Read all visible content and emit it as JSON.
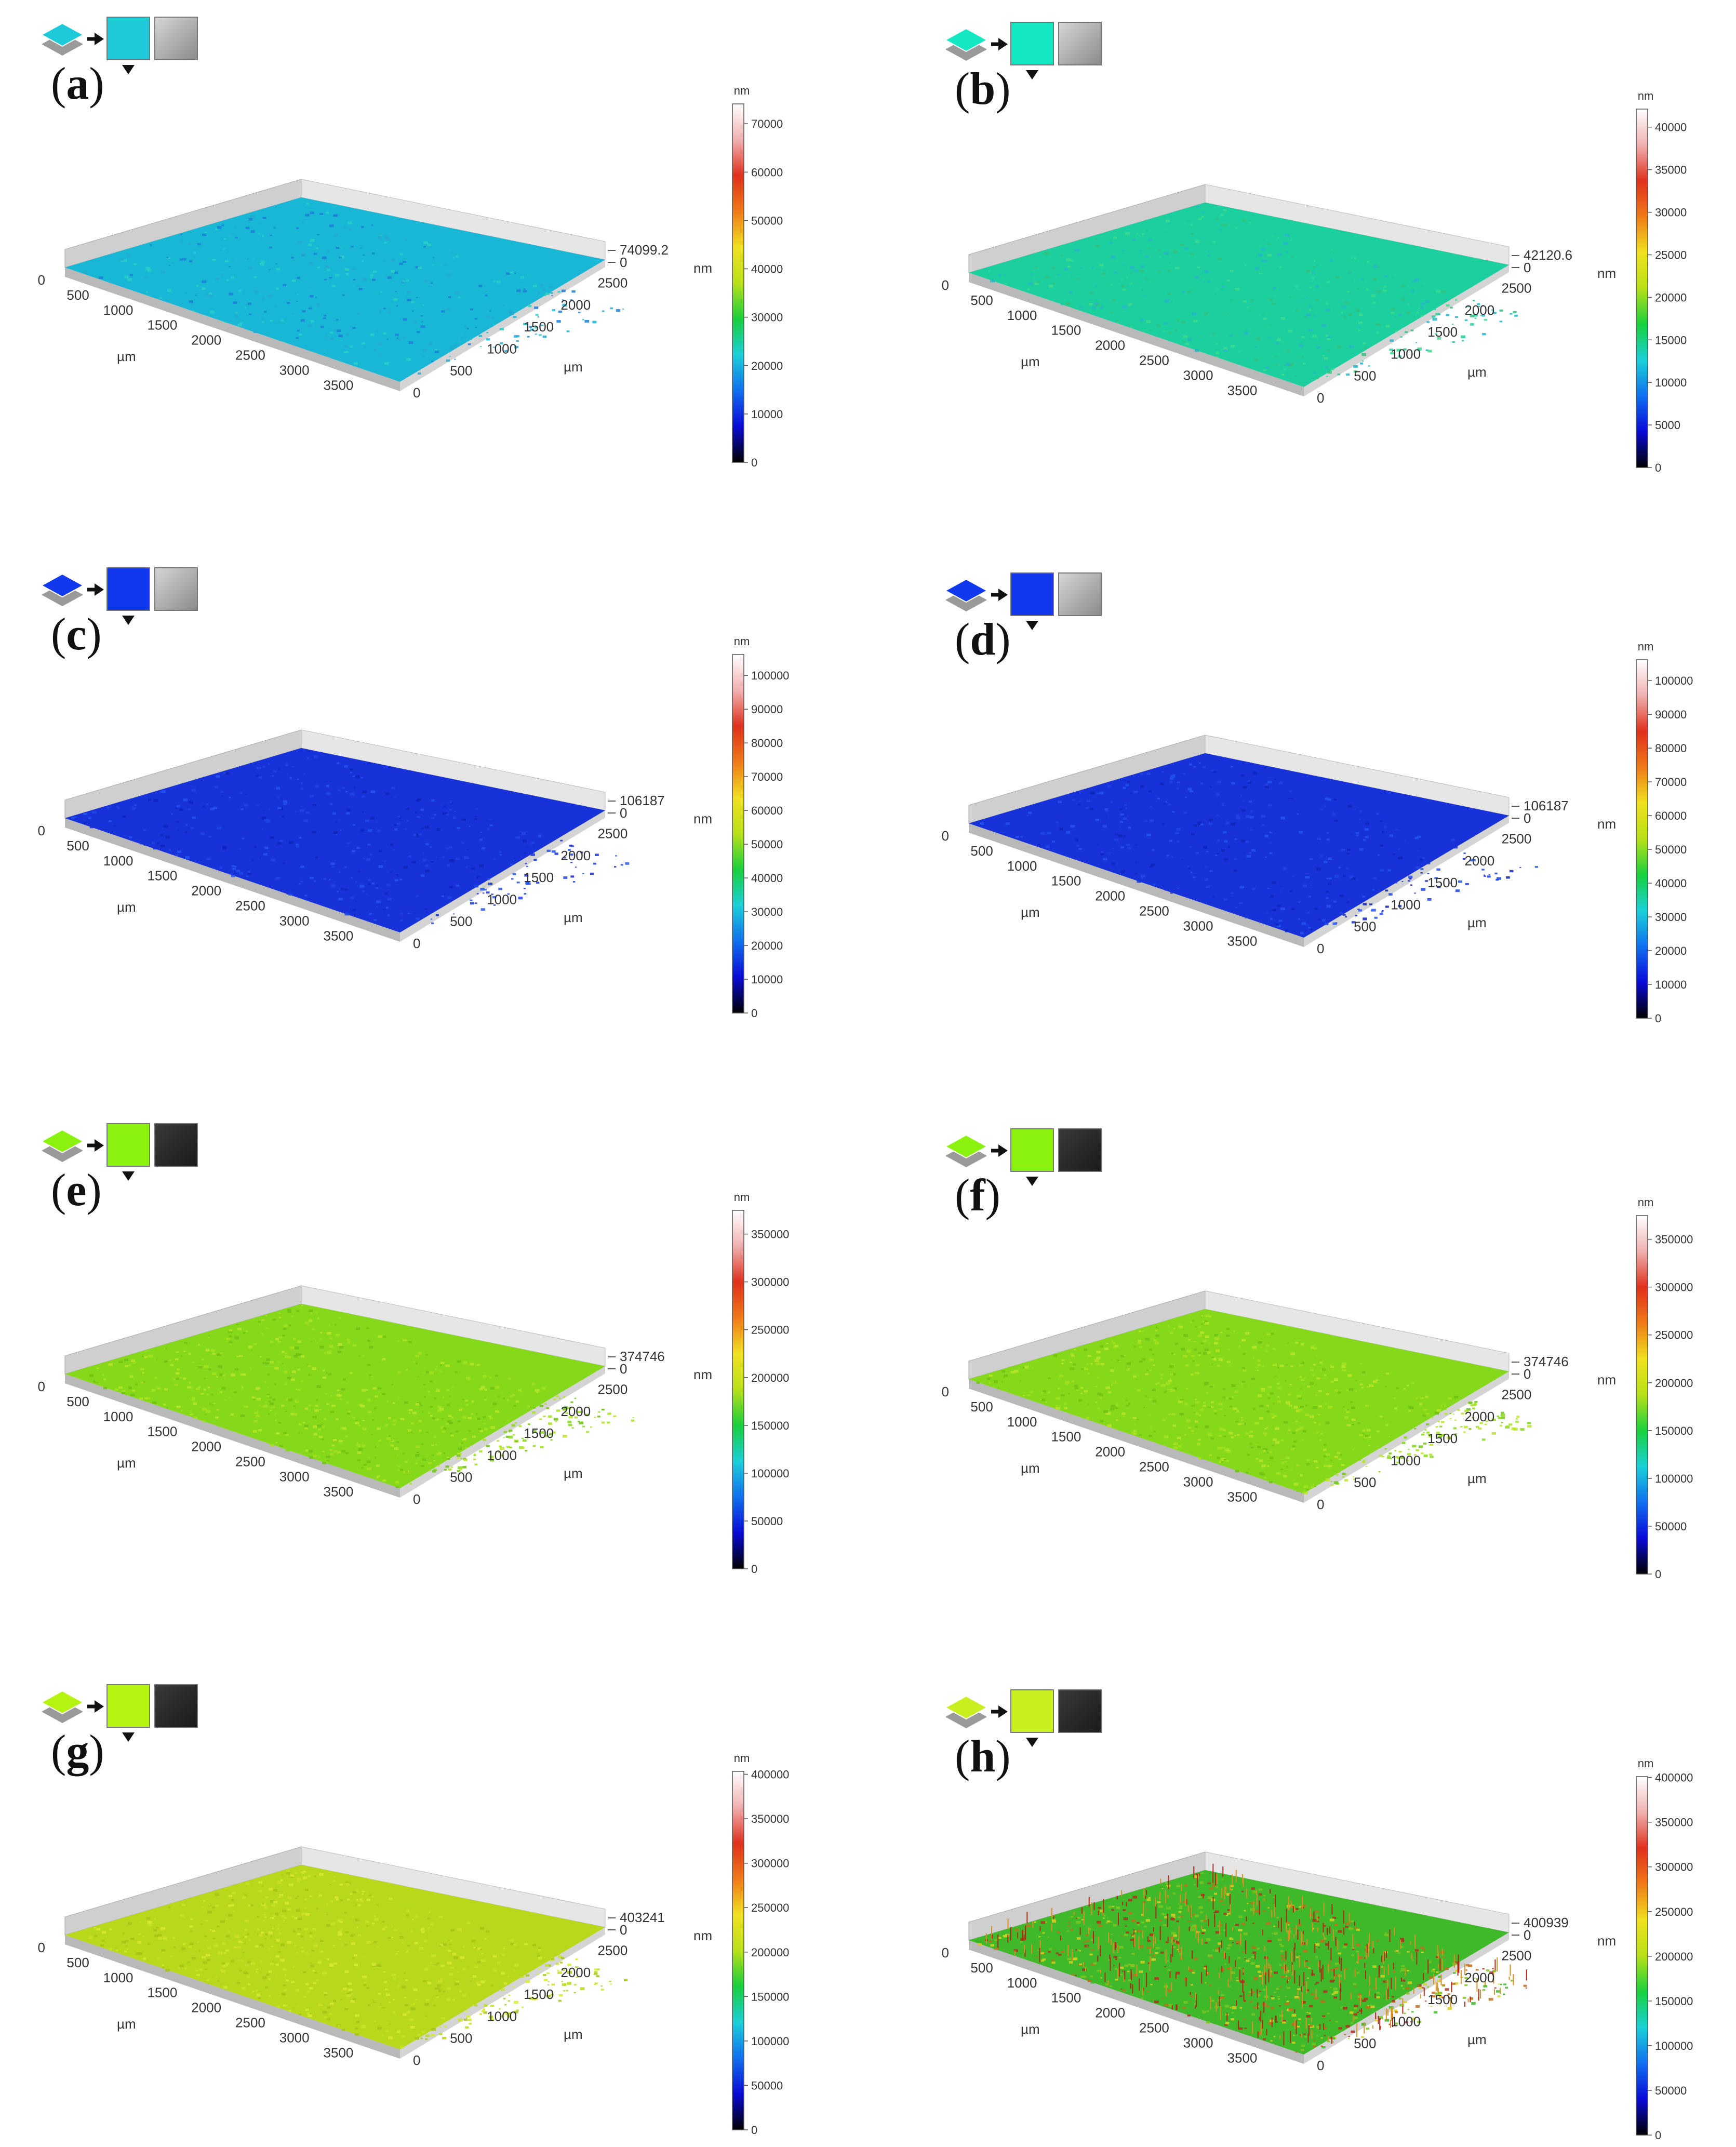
{
  "panels": [
    {
      "letter": "a",
      "swatch_color": "#1ec9d8",
      "sem_tone": "light",
      "surface_colors": [
        "#19b7d6",
        "#2ad0c6",
        "#1c7fd8",
        "#26a8cf"
      ],
      "surface_style": "flat",
      "colorbar_max_label": "74099.2",
      "unit": "nm",
      "colorbar_ticks": [
        "0",
        "10000",
        "20000",
        "30000",
        "40000",
        "50000",
        "60000",
        "70000"
      ],
      "x_ticks": [
        "0",
        "500",
        "1000",
        "1500",
        "2000",
        "2500",
        "3000",
        "3500"
      ],
      "y_ticks": [
        "0",
        "500",
        "1000",
        "1500",
        "2000",
        "2500"
      ],
      "axis_unit": "µm"
    },
    {
      "letter": "b",
      "swatch_color": "#14e8c2",
      "sem_tone": "light",
      "surface_colors": [
        "#1ccf9e",
        "#34c07a",
        "#27b5c9",
        "#3ddc8c"
      ],
      "surface_style": "flat",
      "colorbar_max_label": "42120.6",
      "unit": "nm",
      "colorbar_ticks": [
        "0",
        "5000",
        "10000",
        "15000",
        "20000",
        "25000",
        "30000",
        "35000",
        "40000"
      ],
      "x_ticks": [
        "0",
        "500",
        "1000",
        "1500",
        "2000",
        "2500",
        "3000",
        "3500"
      ],
      "y_ticks": [
        "0",
        "500",
        "1000",
        "1500",
        "2000",
        "2500"
      ],
      "axis_unit": "µm"
    },
    {
      "letter": "c",
      "swatch_color": "#1238ee",
      "sem_tone": "light",
      "surface_colors": [
        "#1632d8",
        "#1e45e8",
        "#0f24b8",
        "#2355f2"
      ],
      "surface_style": "flat",
      "colorbar_max_label": "106187",
      "unit": "nm",
      "colorbar_ticks": [
        "0",
        "10000",
        "20000",
        "30000",
        "40000",
        "50000",
        "60000",
        "70000",
        "80000",
        "90000",
        "100000"
      ],
      "x_ticks": [
        "0",
        "500",
        "1000",
        "1500",
        "2000",
        "2500",
        "3000",
        "3500"
      ],
      "y_ticks": [
        "0",
        "500",
        "1000",
        "1500",
        "2000",
        "2500"
      ],
      "axis_unit": "µm"
    },
    {
      "letter": "d",
      "swatch_color": "#1238ee",
      "sem_tone": "light",
      "surface_colors": [
        "#1632d8",
        "#1e45e8",
        "#0f24b8",
        "#2355f2"
      ],
      "surface_style": "flat",
      "colorbar_max_label": "106187",
      "unit": "nm",
      "colorbar_ticks": [
        "0",
        "10000",
        "20000",
        "30000",
        "40000",
        "50000",
        "60000",
        "70000",
        "80000",
        "90000",
        "100000"
      ],
      "x_ticks": [
        "0",
        "500",
        "1000",
        "1500",
        "2000",
        "2500",
        "3000",
        "3500"
      ],
      "y_ticks": [
        "0",
        "500",
        "1000",
        "1500",
        "2000",
        "2500"
      ],
      "axis_unit": "µm"
    },
    {
      "letter": "e",
      "swatch_color": "#8af20e",
      "sem_tone": "dark",
      "surface_colors": [
        "#86d81a",
        "#a4e21e",
        "#6fc214",
        "#b8e628"
      ],
      "surface_style": "rough",
      "colorbar_max_label": "374746",
      "unit": "nm",
      "colorbar_ticks": [
        "0",
        "50000",
        "100000",
        "150000",
        "200000",
        "250000",
        "300000",
        "350000"
      ],
      "x_ticks": [
        "0",
        "500",
        "1000",
        "1500",
        "2000",
        "2500",
        "3000",
        "3500"
      ],
      "y_ticks": [
        "0",
        "500",
        "1000",
        "1500",
        "2000",
        "2500"
      ],
      "axis_unit": "µm"
    },
    {
      "letter": "f",
      "swatch_color": "#8af20e",
      "sem_tone": "dark",
      "surface_colors": [
        "#86d81a",
        "#a4e21e",
        "#6fc214",
        "#b8e628"
      ],
      "surface_style": "rough",
      "colorbar_max_label": "374746",
      "unit": "nm",
      "colorbar_ticks": [
        "0",
        "50000",
        "100000",
        "150000",
        "200000",
        "250000",
        "300000",
        "350000"
      ],
      "x_ticks": [
        "0",
        "500",
        "1000",
        "1500",
        "2000",
        "2500",
        "3000",
        "3500"
      ],
      "y_ticks": [
        "0",
        "500",
        "1000",
        "1500",
        "2000",
        "2500"
      ],
      "axis_unit": "µm"
    },
    {
      "letter": "g",
      "swatch_color": "#b4f410",
      "sem_tone": "dark",
      "surface_colors": [
        "#b8d81c",
        "#cde224",
        "#a2c416",
        "#d8ea30"
      ],
      "surface_style": "rough",
      "colorbar_max_label": "403241",
      "unit": "nm",
      "colorbar_ticks": [
        "0",
        "50000",
        "100000",
        "150000",
        "200000",
        "250000",
        "300000",
        "350000",
        "400000"
      ],
      "x_ticks": [
        "0",
        "500",
        "1000",
        "1500",
        "2000",
        "2500",
        "3000",
        "3500"
      ],
      "y_ticks": [
        "0",
        "500",
        "1000",
        "1500",
        "2000",
        "2500"
      ],
      "axis_unit": "µm"
    },
    {
      "letter": "h",
      "swatch_color": "#c8f020",
      "sem_tone": "dark",
      "surface_colors": [
        "#3fb82a",
        "#7cc51e",
        "#c0701a",
        "#d8d020",
        "#b03020"
      ],
      "surface_style": "spiky",
      "colorbar_max_label": "400939",
      "unit": "nm",
      "colorbar_ticks": [
        "0",
        "50000",
        "100000",
        "150000",
        "200000",
        "250000",
        "300000",
        "350000",
        "400000"
      ],
      "x_ticks": [
        "0",
        "500",
        "1000",
        "1500",
        "2000",
        "2500",
        "3000",
        "3500"
      ],
      "y_ticks": [
        "0",
        "500",
        "1000",
        "1500",
        "2000",
        "2500"
      ],
      "axis_unit": "µm"
    }
  ],
  "colorbar_gradient": [
    "#000000",
    "#0a0ad8",
    "#1070f0",
    "#1ad0d8",
    "#18d03c",
    "#b8e018",
    "#f0e020",
    "#f07a18",
    "#e0301c",
    "#f0b0b0",
    "#ffffff"
  ]
}
